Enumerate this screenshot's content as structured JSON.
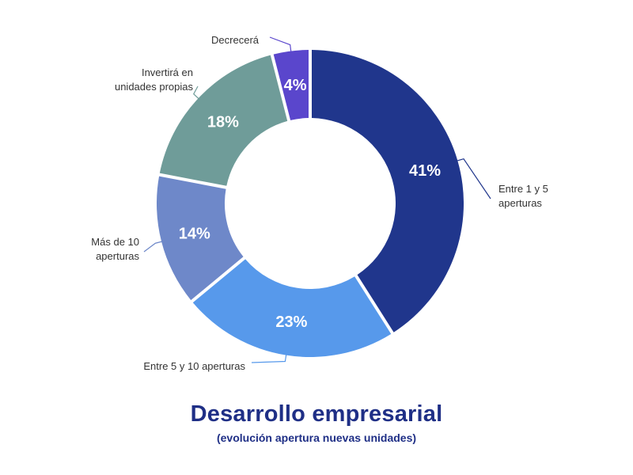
{
  "chart_data": {
    "type": "pie",
    "style": "donut",
    "title": "Desarrollo empresarial",
    "subtitle": "(evolución apertura nuevas unidades)",
    "slices": [
      {
        "label": "Entre 1 y 5 aperturas",
        "label_lines": [
          "Entre 1 y 5",
          "aperturas"
        ],
        "value": 41,
        "value_label": "41%",
        "color": "#20368c"
      },
      {
        "label": "Entre 5 y 10 aperturas",
        "label_lines": [
          "Entre 5 y 10 aperturas"
        ],
        "value": 23,
        "value_label": "23%",
        "color": "#5799eb"
      },
      {
        "label": "Más de 10 aperturas",
        "label_lines": [
          "Más de 10",
          "aperturas"
        ],
        "value": 14,
        "value_label": "14%",
        "color": "#6e88c9"
      },
      {
        "label": "Invertirá en unidades propias",
        "label_lines": [
          "Invertirá en",
          "unidades propias"
        ],
        "value": 18,
        "value_label": "18%",
        "color": "#6f9c99"
      },
      {
        "label": "Decrecerá",
        "label_lines": [
          "Decrecerá"
        ],
        "value": 4,
        "value_label": "4%",
        "color": "#5a46cc"
      }
    ]
  }
}
